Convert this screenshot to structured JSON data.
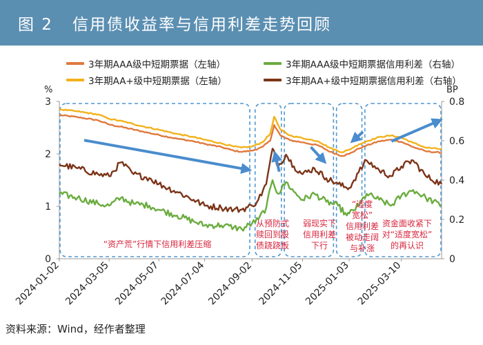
{
  "figure": {
    "label": "图 2",
    "title": "信用债收益率与信用利差走势回顾",
    "source": "资料来源：Wind，经作者整理"
  },
  "chart_data": {
    "type": "line",
    "title": "信用债收益率与信用利差走势回顾",
    "x_ticks": [
      "2024-01-02",
      "2024-03-05",
      "2024-05-07",
      "2024-07-04",
      "2024-09-02",
      "2024-11-05",
      "2025-01-03",
      "2025-03-10"
    ],
    "x_range": [
      "2024-01-02",
      "2025-04-30"
    ],
    "left_axis": {
      "unit": "%",
      "ylim": [
        0,
        3
      ],
      "ticks": [
        "0",
        "1",
        "2",
        "3"
      ]
    },
    "right_axis": {
      "unit": "BP",
      "ylim": [
        0,
        0.8
      ],
      "ticks": [
        "0",
        "0.2",
        "0.4",
        "0.6",
        "0.8"
      ]
    },
    "series": [
      {
        "name": "3年期AAA级中短期票据（左轴）",
        "axis": "left",
        "color": "#e0793e",
        "points": [
          [
            "2024-01-02",
            2.74
          ],
          [
            "2024-01-25",
            2.7
          ],
          [
            "2024-02-20",
            2.64
          ],
          [
            "2024-03-05",
            2.56
          ],
          [
            "2024-03-25",
            2.5
          ],
          [
            "2024-04-15",
            2.43
          ],
          [
            "2024-05-07",
            2.36
          ],
          [
            "2024-05-30",
            2.29
          ],
          [
            "2024-06-20",
            2.24
          ],
          [
            "2024-07-04",
            2.19
          ],
          [
            "2024-07-25",
            2.13
          ],
          [
            "2024-08-10",
            2.06
          ],
          [
            "2024-08-20",
            2.04
          ],
          [
            "2024-09-02",
            2.06
          ],
          [
            "2024-09-15",
            2.13
          ],
          [
            "2024-09-25",
            2.25
          ],
          [
            "2024-09-30",
            2.55
          ],
          [
            "2024-10-08",
            2.35
          ],
          [
            "2024-10-20",
            2.26
          ],
          [
            "2024-11-05",
            2.22
          ],
          [
            "2024-11-25",
            2.16
          ],
          [
            "2024-12-10",
            2.04
          ],
          [
            "2024-12-25",
            1.96
          ],
          [
            "2025-01-03",
            2.0
          ],
          [
            "2025-01-15",
            2.1
          ],
          [
            "2025-01-25",
            2.16
          ],
          [
            "2025-02-10",
            2.24
          ],
          [
            "2025-02-25",
            2.27
          ],
          [
            "2025-03-10",
            2.23
          ],
          [
            "2025-03-25",
            2.13
          ],
          [
            "2025-04-10",
            2.05
          ],
          [
            "2025-04-30",
            2.02
          ]
        ]
      },
      {
        "name": "3年期AA+级中短期票据（左轴）",
        "axis": "left",
        "color": "#f2b21b",
        "points": [
          [
            "2024-01-02",
            2.85
          ],
          [
            "2024-01-25",
            2.81
          ],
          [
            "2024-02-20",
            2.75
          ],
          [
            "2024-03-05",
            2.67
          ],
          [
            "2024-03-25",
            2.61
          ],
          [
            "2024-04-15",
            2.53
          ],
          [
            "2024-05-07",
            2.46
          ],
          [
            "2024-05-30",
            2.38
          ],
          [
            "2024-06-20",
            2.32
          ],
          [
            "2024-07-04",
            2.27
          ],
          [
            "2024-07-25",
            2.2
          ],
          [
            "2024-08-10",
            2.14
          ],
          [
            "2024-08-20",
            2.12
          ],
          [
            "2024-09-02",
            2.14
          ],
          [
            "2024-09-15",
            2.22
          ],
          [
            "2024-09-25",
            2.38
          ],
          [
            "2024-09-30",
            2.71
          ],
          [
            "2024-10-08",
            2.46
          ],
          [
            "2024-10-20",
            2.35
          ],
          [
            "2024-11-05",
            2.3
          ],
          [
            "2024-11-25",
            2.24
          ],
          [
            "2024-12-10",
            2.11
          ],
          [
            "2024-12-25",
            2.03
          ],
          [
            "2025-01-03",
            2.08
          ],
          [
            "2025-01-15",
            2.18
          ],
          [
            "2025-01-25",
            2.24
          ],
          [
            "2025-02-10",
            2.32
          ],
          [
            "2025-02-25",
            2.35
          ],
          [
            "2025-03-10",
            2.31
          ],
          [
            "2025-03-25",
            2.21
          ],
          [
            "2025-04-10",
            2.12
          ],
          [
            "2025-04-30",
            2.09
          ]
        ]
      },
      {
        "name": "3年期AAA级中短期票据信用利差（右轴）",
        "axis": "right",
        "color": "#6aac3e",
        "points": [
          [
            "2024-01-02",
            0.33
          ],
          [
            "2024-01-25",
            0.31
          ],
          [
            "2024-02-20",
            0.28
          ],
          [
            "2024-03-05",
            0.27
          ],
          [
            "2024-03-20",
            0.31
          ],
          [
            "2024-04-05",
            0.28
          ],
          [
            "2024-04-25",
            0.27
          ],
          [
            "2024-05-07",
            0.25
          ],
          [
            "2024-05-30",
            0.22
          ],
          [
            "2024-06-20",
            0.19
          ],
          [
            "2024-07-04",
            0.17
          ],
          [
            "2024-07-25",
            0.17
          ],
          [
            "2024-08-10",
            0.16
          ],
          [
            "2024-08-20",
            0.15
          ],
          [
            "2024-09-02",
            0.18
          ],
          [
            "2024-09-10",
            0.2
          ],
          [
            "2024-09-20",
            0.26
          ],
          [
            "2024-09-28",
            0.4
          ],
          [
            "2024-10-05",
            0.33
          ],
          [
            "2024-10-15",
            0.39
          ],
          [
            "2024-10-25",
            0.34
          ],
          [
            "2024-11-05",
            0.3
          ],
          [
            "2024-11-20",
            0.33
          ],
          [
            "2024-12-05",
            0.29
          ],
          [
            "2024-12-20",
            0.27
          ],
          [
            "2024-12-31",
            0.22
          ],
          [
            "2025-01-03",
            0.23
          ],
          [
            "2025-01-15",
            0.27
          ],
          [
            "2025-01-25",
            0.33
          ],
          [
            "2025-02-10",
            0.3
          ],
          [
            "2025-02-25",
            0.27
          ],
          [
            "2025-03-10",
            0.32
          ],
          [
            "2025-03-25",
            0.35
          ],
          [
            "2025-04-10",
            0.31
          ],
          [
            "2025-04-30",
            0.27
          ]
        ]
      },
      {
        "name": "3年期AA+级中短期票据信用利差（右轴）",
        "axis": "right",
        "color": "#7b3418",
        "points": [
          [
            "2024-01-02",
            0.48
          ],
          [
            "2024-01-25",
            0.46
          ],
          [
            "2024-02-20",
            0.43
          ],
          [
            "2024-03-05",
            0.42
          ],
          [
            "2024-03-20",
            0.49
          ],
          [
            "2024-04-05",
            0.43
          ],
          [
            "2024-04-25",
            0.41
          ],
          [
            "2024-05-07",
            0.38
          ],
          [
            "2024-05-30",
            0.34
          ],
          [
            "2024-06-20",
            0.3
          ],
          [
            "2024-07-04",
            0.27
          ],
          [
            "2024-07-25",
            0.26
          ],
          [
            "2024-08-10",
            0.25
          ],
          [
            "2024-08-20",
            0.25
          ],
          [
            "2024-09-02",
            0.27
          ],
          [
            "2024-09-10",
            0.3
          ],
          [
            "2024-09-20",
            0.38
          ],
          [
            "2024-09-28",
            0.56
          ],
          [
            "2024-10-05",
            0.47
          ],
          [
            "2024-10-15",
            0.53
          ],
          [
            "2024-10-25",
            0.47
          ],
          [
            "2024-11-05",
            0.43
          ],
          [
            "2024-11-20",
            0.46
          ],
          [
            "2024-12-05",
            0.41
          ],
          [
            "2024-12-20",
            0.38
          ],
          [
            "2024-12-31",
            0.36
          ],
          [
            "2025-01-03",
            0.36
          ],
          [
            "2025-01-15",
            0.44
          ],
          [
            "2025-01-25",
            0.5
          ],
          [
            "2025-02-10",
            0.45
          ],
          [
            "2025-02-25",
            0.42
          ],
          [
            "2025-03-10",
            0.47
          ],
          [
            "2025-03-25",
            0.5
          ],
          [
            "2025-04-10",
            0.42
          ],
          [
            "2025-04-30",
            0.38
          ]
        ]
      }
    ],
    "phases": [
      {
        "start": "2024-01-02",
        "end": "2024-08-31",
        "label": [
          "“资产荒”行情下信用利差压缩"
        ]
      },
      {
        "start": "2024-09-05",
        "end": "2024-10-10",
        "label": [
          "从预防式",
          "赎回到股",
          "债跷跷板"
        ]
      },
      {
        "start": "2024-10-12",
        "end": "2024-12-15",
        "label": [
          "弱现实下",
          "信用利差",
          "下行"
        ]
      },
      {
        "start": "2024-12-17",
        "end": "2025-01-20",
        "label": [
          "“适度",
          "宽松”",
          "信用利差",
          "被动走阔",
          "与补涨"
        ]
      },
      {
        "start": "2025-01-22",
        "end": "2025-04-30",
        "label": [
          "资金面收紧下",
          "对“适度宽松”",
          "的再认识"
        ]
      }
    ],
    "trend_arrows": [
      {
        "from": [
          "2024-01-02",
          2.26
        ],
        "to": [
          "2024-08-31",
          1.7
        ]
      },
      {
        "from": [
          "2024-09-05",
          1.66
        ],
        "to": [
          "2024-10-05",
          1.98
        ]
      },
      {
        "from": [
          "2024-10-15",
          2.13
        ],
        "to": [
          "2024-12-05",
          1.87
        ]
      },
      {
        "from": [
          "2024-12-20",
          2.42
        ],
        "to": [
          "2025-01-12",
          2.26
        ]
      },
      {
        "from": [
          "2025-01-25",
          2.24
        ],
        "to": [
          "2025-04-30",
          2.63
        ]
      }
    ]
  }
}
